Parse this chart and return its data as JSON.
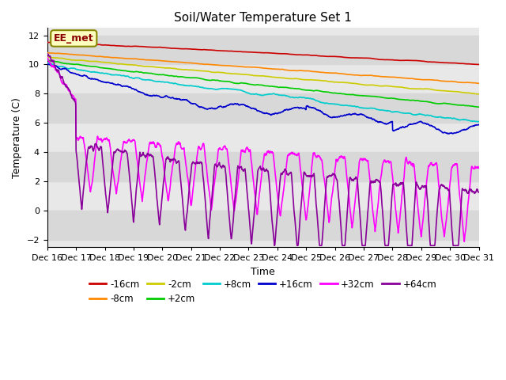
{
  "title": "Soil/Water Temperature Set 1",
  "xlabel": "Time",
  "ylabel": "Temperature (C)",
  "ylim": [
    -2.5,
    12.5
  ],
  "yticks": [
    -2,
    0,
    2,
    4,
    6,
    8,
    10,
    12
  ],
  "xlim": [
    0,
    15
  ],
  "xtick_labels": [
    "Dec 16",
    "Dec 17",
    "Dec 18",
    "Dec 19",
    "Dec 20",
    "Dec 21",
    "Dec 22",
    "Dec 23",
    "Dec 24",
    "Dec 25",
    "Dec 26",
    "Dec 27",
    "Dec 28",
    "Dec 29",
    "Dec 30",
    "Dec 31"
  ],
  "annotation": "EE_met",
  "series_order": [
    "-16cm",
    "-8cm",
    "-2cm",
    "+2cm",
    "+8cm",
    "+16cm",
    "+32cm",
    "+64cm"
  ],
  "colors": {
    "-16cm": "#cc0000",
    "-8cm": "#ff8800",
    "-2cm": "#cccc00",
    "+2cm": "#00cc00",
    "+8cm": "#00cccc",
    "+16cm": "#0000cc",
    "+32cm": "#ff00ff",
    "+64cm": "#880099"
  },
  "linewidth": 1.2,
  "background_color": "#ffffff",
  "band_colors": [
    "#e8e8e8",
    "#d8d8d8"
  ],
  "legend_ncol": 6
}
